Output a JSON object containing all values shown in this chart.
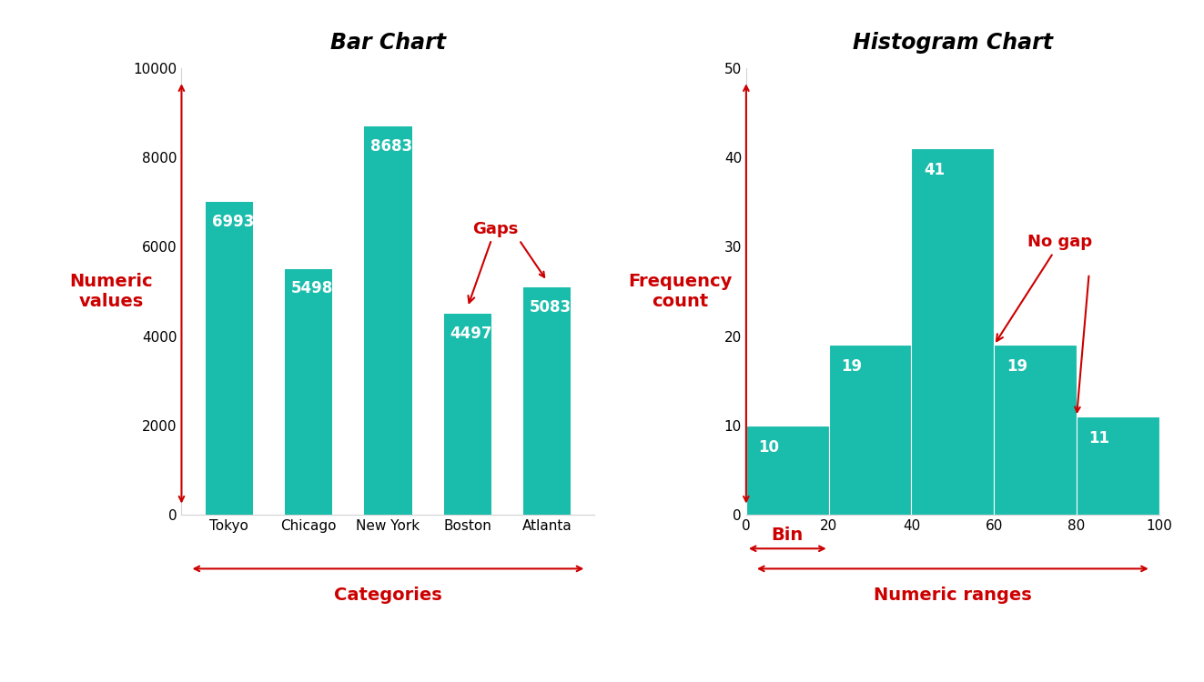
{
  "bar_chart": {
    "title": "Bar Chart",
    "categories": [
      "Tokyo",
      "Chicago",
      "New York",
      "Boston",
      "Atlanta"
    ],
    "values": [
      6993,
      5498,
      8683,
      4497,
      5083
    ],
    "bar_color": "#1ABCAC",
    "ylim": [
      0,
      10000
    ],
    "yticks": [
      0,
      2000,
      4000,
      6000,
      8000,
      10000
    ],
    "ylabel": "Numeric\nvalues",
    "xlabel": "Categories",
    "label_color": "white",
    "label_fontsize": 12
  },
  "hist_chart": {
    "title": "Histogram Chart",
    "bin_edges": [
      0,
      20,
      40,
      60,
      80,
      100
    ],
    "counts": [
      10,
      19,
      41,
      19,
      11
    ],
    "bar_color": "#1ABCAC",
    "ylim": [
      0,
      50
    ],
    "yticks": [
      0,
      10,
      20,
      30,
      40,
      50
    ],
    "xlim": [
      0,
      100
    ],
    "xticks": [
      0,
      20,
      40,
      60,
      80,
      100
    ],
    "ylabel": "Frequency\ncount",
    "xlabel": "Numeric ranges",
    "label_color": "white",
    "label_fontsize": 12
  },
  "title_fontsize": 17,
  "axis_label_fontsize": 14,
  "axis_label_color": "#cc0000",
  "annotation_color": "#cc0000",
  "annotation_fontsize": 13,
  "background_color": "#ffffff",
  "tick_label_fontsize": 11
}
